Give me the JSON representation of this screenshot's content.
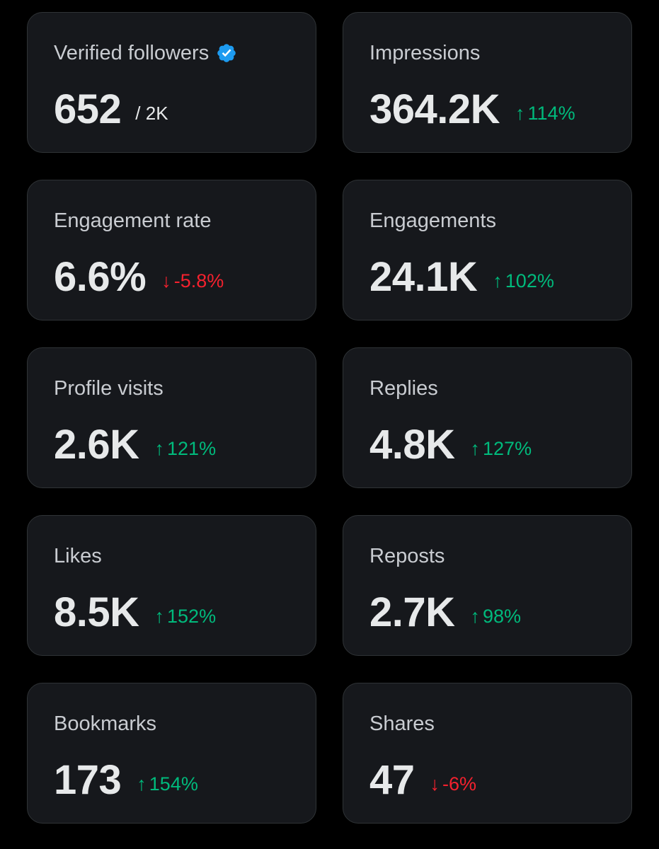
{
  "colors": {
    "background": "#000000",
    "card": "#16181c",
    "card_border": "#2f3336",
    "up": "#00ba7c",
    "down": "#f4212e",
    "verified_badge": "#1d9bf0"
  },
  "cards": [
    {
      "label": "Verified followers",
      "value": "652",
      "sub": "/ 2K",
      "badge": "verified-badge-icon"
    },
    {
      "label": "Impressions",
      "value": "364.2K",
      "change": "114%",
      "direction": "up",
      "arrow": "↑"
    },
    {
      "label": "Engagement rate",
      "value": "6.6%",
      "change": "-5.8%",
      "direction": "down",
      "arrow": "↓"
    },
    {
      "label": "Engagements",
      "value": "24.1K",
      "change": "102%",
      "direction": "up",
      "arrow": "↑"
    },
    {
      "label": "Profile visits",
      "value": "2.6K",
      "change": "121%",
      "direction": "up",
      "arrow": "↑"
    },
    {
      "label": "Replies",
      "value": "4.8K",
      "change": "127%",
      "direction": "up",
      "arrow": "↑"
    },
    {
      "label": "Likes",
      "value": "8.5K",
      "change": "152%",
      "direction": "up",
      "arrow": "↑"
    },
    {
      "label": "Reposts",
      "value": "2.7K",
      "change": "98%",
      "direction": "up",
      "arrow": "↑"
    },
    {
      "label": "Bookmarks",
      "value": "173",
      "change": "154%",
      "direction": "up",
      "arrow": "↑"
    },
    {
      "label": "Shares",
      "value": "47",
      "change": "-6%",
      "direction": "down",
      "arrow": "↓"
    }
  ]
}
